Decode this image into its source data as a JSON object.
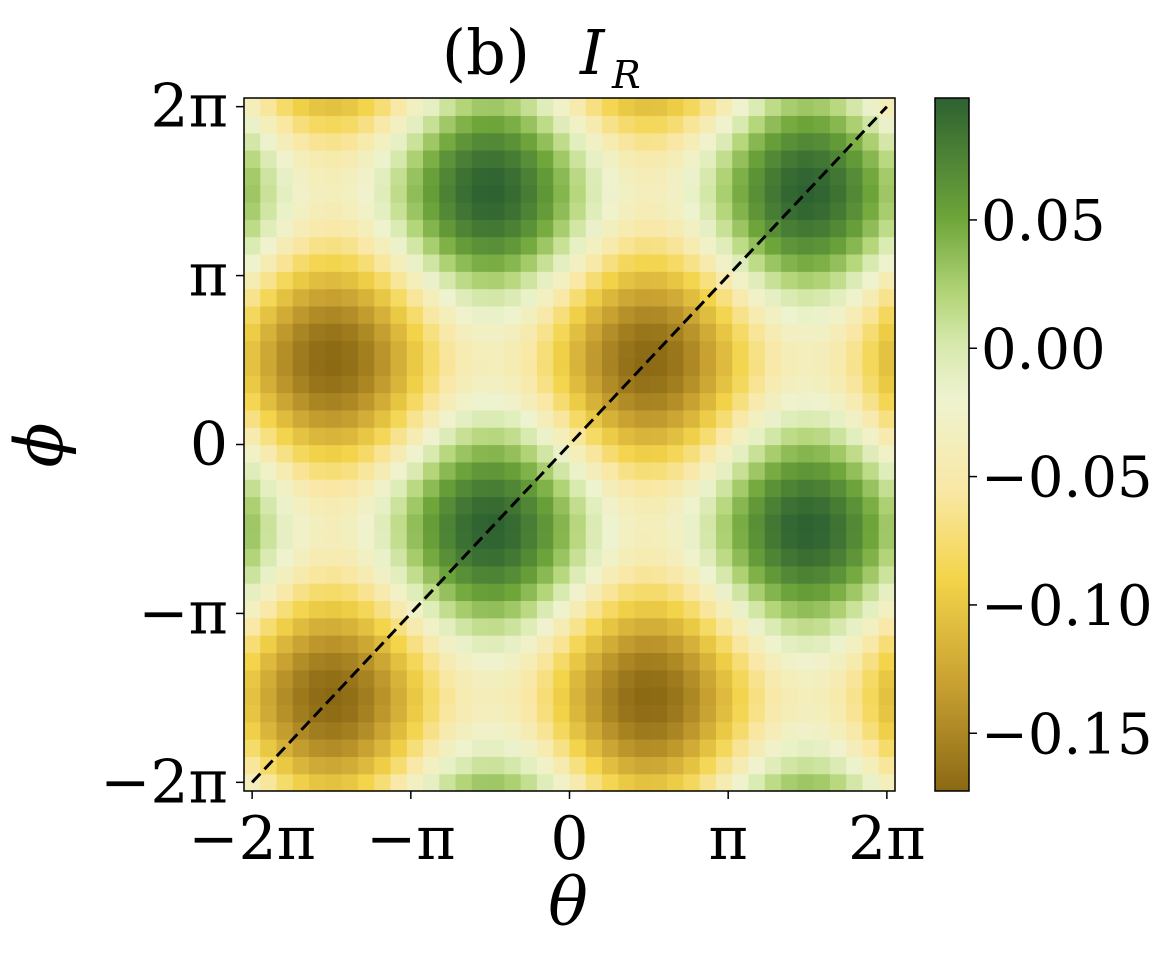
{
  "chart_data": {
    "type": "heatmap",
    "title": "(b)",
    "title_symbol": "I",
    "title_subscript": "R",
    "xlabel": "θ",
    "ylabel": "ϕ",
    "xlim": [
      -6.2832,
      6.2832
    ],
    "ylim": [
      -6.2832,
      6.2832
    ],
    "grid_resolution": 40,
    "x_ticks": [
      {
        "value": -6.2832,
        "label": "−2π"
      },
      {
        "value": -3.1416,
        "label": "−π"
      },
      {
        "value": 0,
        "label": "0"
      },
      {
        "value": 3.1416,
        "label": "π"
      },
      {
        "value": 6.2832,
        "label": "2π"
      }
    ],
    "y_ticks": [
      {
        "value": -6.2832,
        "label": "−2π"
      },
      {
        "value": -3.1416,
        "label": "−π"
      },
      {
        "value": 0,
        "label": "0"
      },
      {
        "value": 3.1416,
        "label": "π"
      },
      {
        "value": 6.2832,
        "label": "2π"
      }
    ],
    "field": {
      "description_formula": "value = -0.0375 - 0.135 * cos(0.5*(theta - phi)) * cos(0.5*(theta + phi) - 1.5708)",
      "vmin": -0.1725,
      "vmax": 0.0975
    },
    "colorbar": {
      "ticks": [
        {
          "value": 0.05,
          "label": "0.05"
        },
        {
          "value": 0.0,
          "label": "0.00"
        },
        {
          "value": -0.05,
          "label": "−0.05"
        },
        {
          "value": -0.1,
          "label": "−0.10"
        },
        {
          "value": -0.15,
          "label": "−0.15"
        }
      ],
      "colors": [
        {
          "value": -0.1725,
          "color": "#8b6914"
        },
        {
          "value": -0.13,
          "color": "#c9a232"
        },
        {
          "value": -0.09,
          "color": "#f3d44a"
        },
        {
          "value": -0.055,
          "color": "#f9e8a6"
        },
        {
          "value": -0.02,
          "color": "#eef3cf"
        },
        {
          "value": 0.0,
          "color": "#d9eab1"
        },
        {
          "value": 0.02,
          "color": "#b5d67a"
        },
        {
          "value": 0.05,
          "color": "#6fa63a"
        },
        {
          "value": 0.0975,
          "color": "#2d6131"
        }
      ]
    },
    "reference_line": {
      "style": "dashed",
      "color": "#000000",
      "from": [
        -6.2832,
        -6.2832
      ],
      "to": [
        6.2832,
        6.2832
      ]
    }
  }
}
